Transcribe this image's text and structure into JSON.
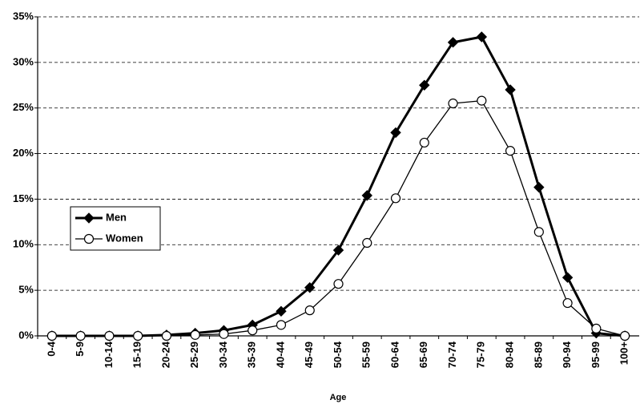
{
  "chart_data": {
    "type": "line",
    "x_label": "Age",
    "categories": [
      "0-4",
      "5-9",
      "10-14",
      "15-19",
      "20-24",
      "25-29",
      "30-34",
      "35-39",
      "40-44",
      "45-49",
      "50-54",
      "55-59",
      "60-64",
      "65-69",
      "70-74",
      "75-79",
      "80-84",
      "85-89",
      "90-94",
      "95-99",
      "100+"
    ],
    "series": [
      {
        "name": "Men",
        "color": "#000000",
        "marker": "diamond",
        "line_width": 3,
        "values": [
          0,
          0,
          0,
          0,
          0.1,
          0.3,
          0.6,
          1.2,
          2.7,
          5.3,
          9.4,
          15.4,
          22.3,
          27.5,
          32.2,
          32.8,
          27.0,
          16.3,
          6.4,
          0.3,
          0
        ]
      },
      {
        "name": "Women",
        "color": "#000000",
        "marker": "circle",
        "line_width": 1.3,
        "values": [
          0,
          0,
          0,
          0,
          0,
          0.1,
          0.2,
          0.6,
          1.2,
          2.8,
          5.7,
          10.2,
          15.1,
          21.2,
          25.5,
          25.8,
          20.3,
          11.4,
          3.6,
          0.8,
          0
        ]
      }
    ],
    "ylim": [
      0,
      35
    ],
    "yticks": [
      {
        "value": 0,
        "label": "0%"
      },
      {
        "value": 5,
        "label": "5%"
      },
      {
        "value": 10,
        "label": "10%"
      },
      {
        "value": 15,
        "label": "15%"
      },
      {
        "value": 20,
        "label": "20%"
      },
      {
        "value": 25,
        "label": "25%"
      },
      {
        "value": 30,
        "label": "30%"
      },
      {
        "value": 35,
        "label": "35%"
      }
    ],
    "grid": true,
    "grid_style": "dashed",
    "legend": "left"
  }
}
